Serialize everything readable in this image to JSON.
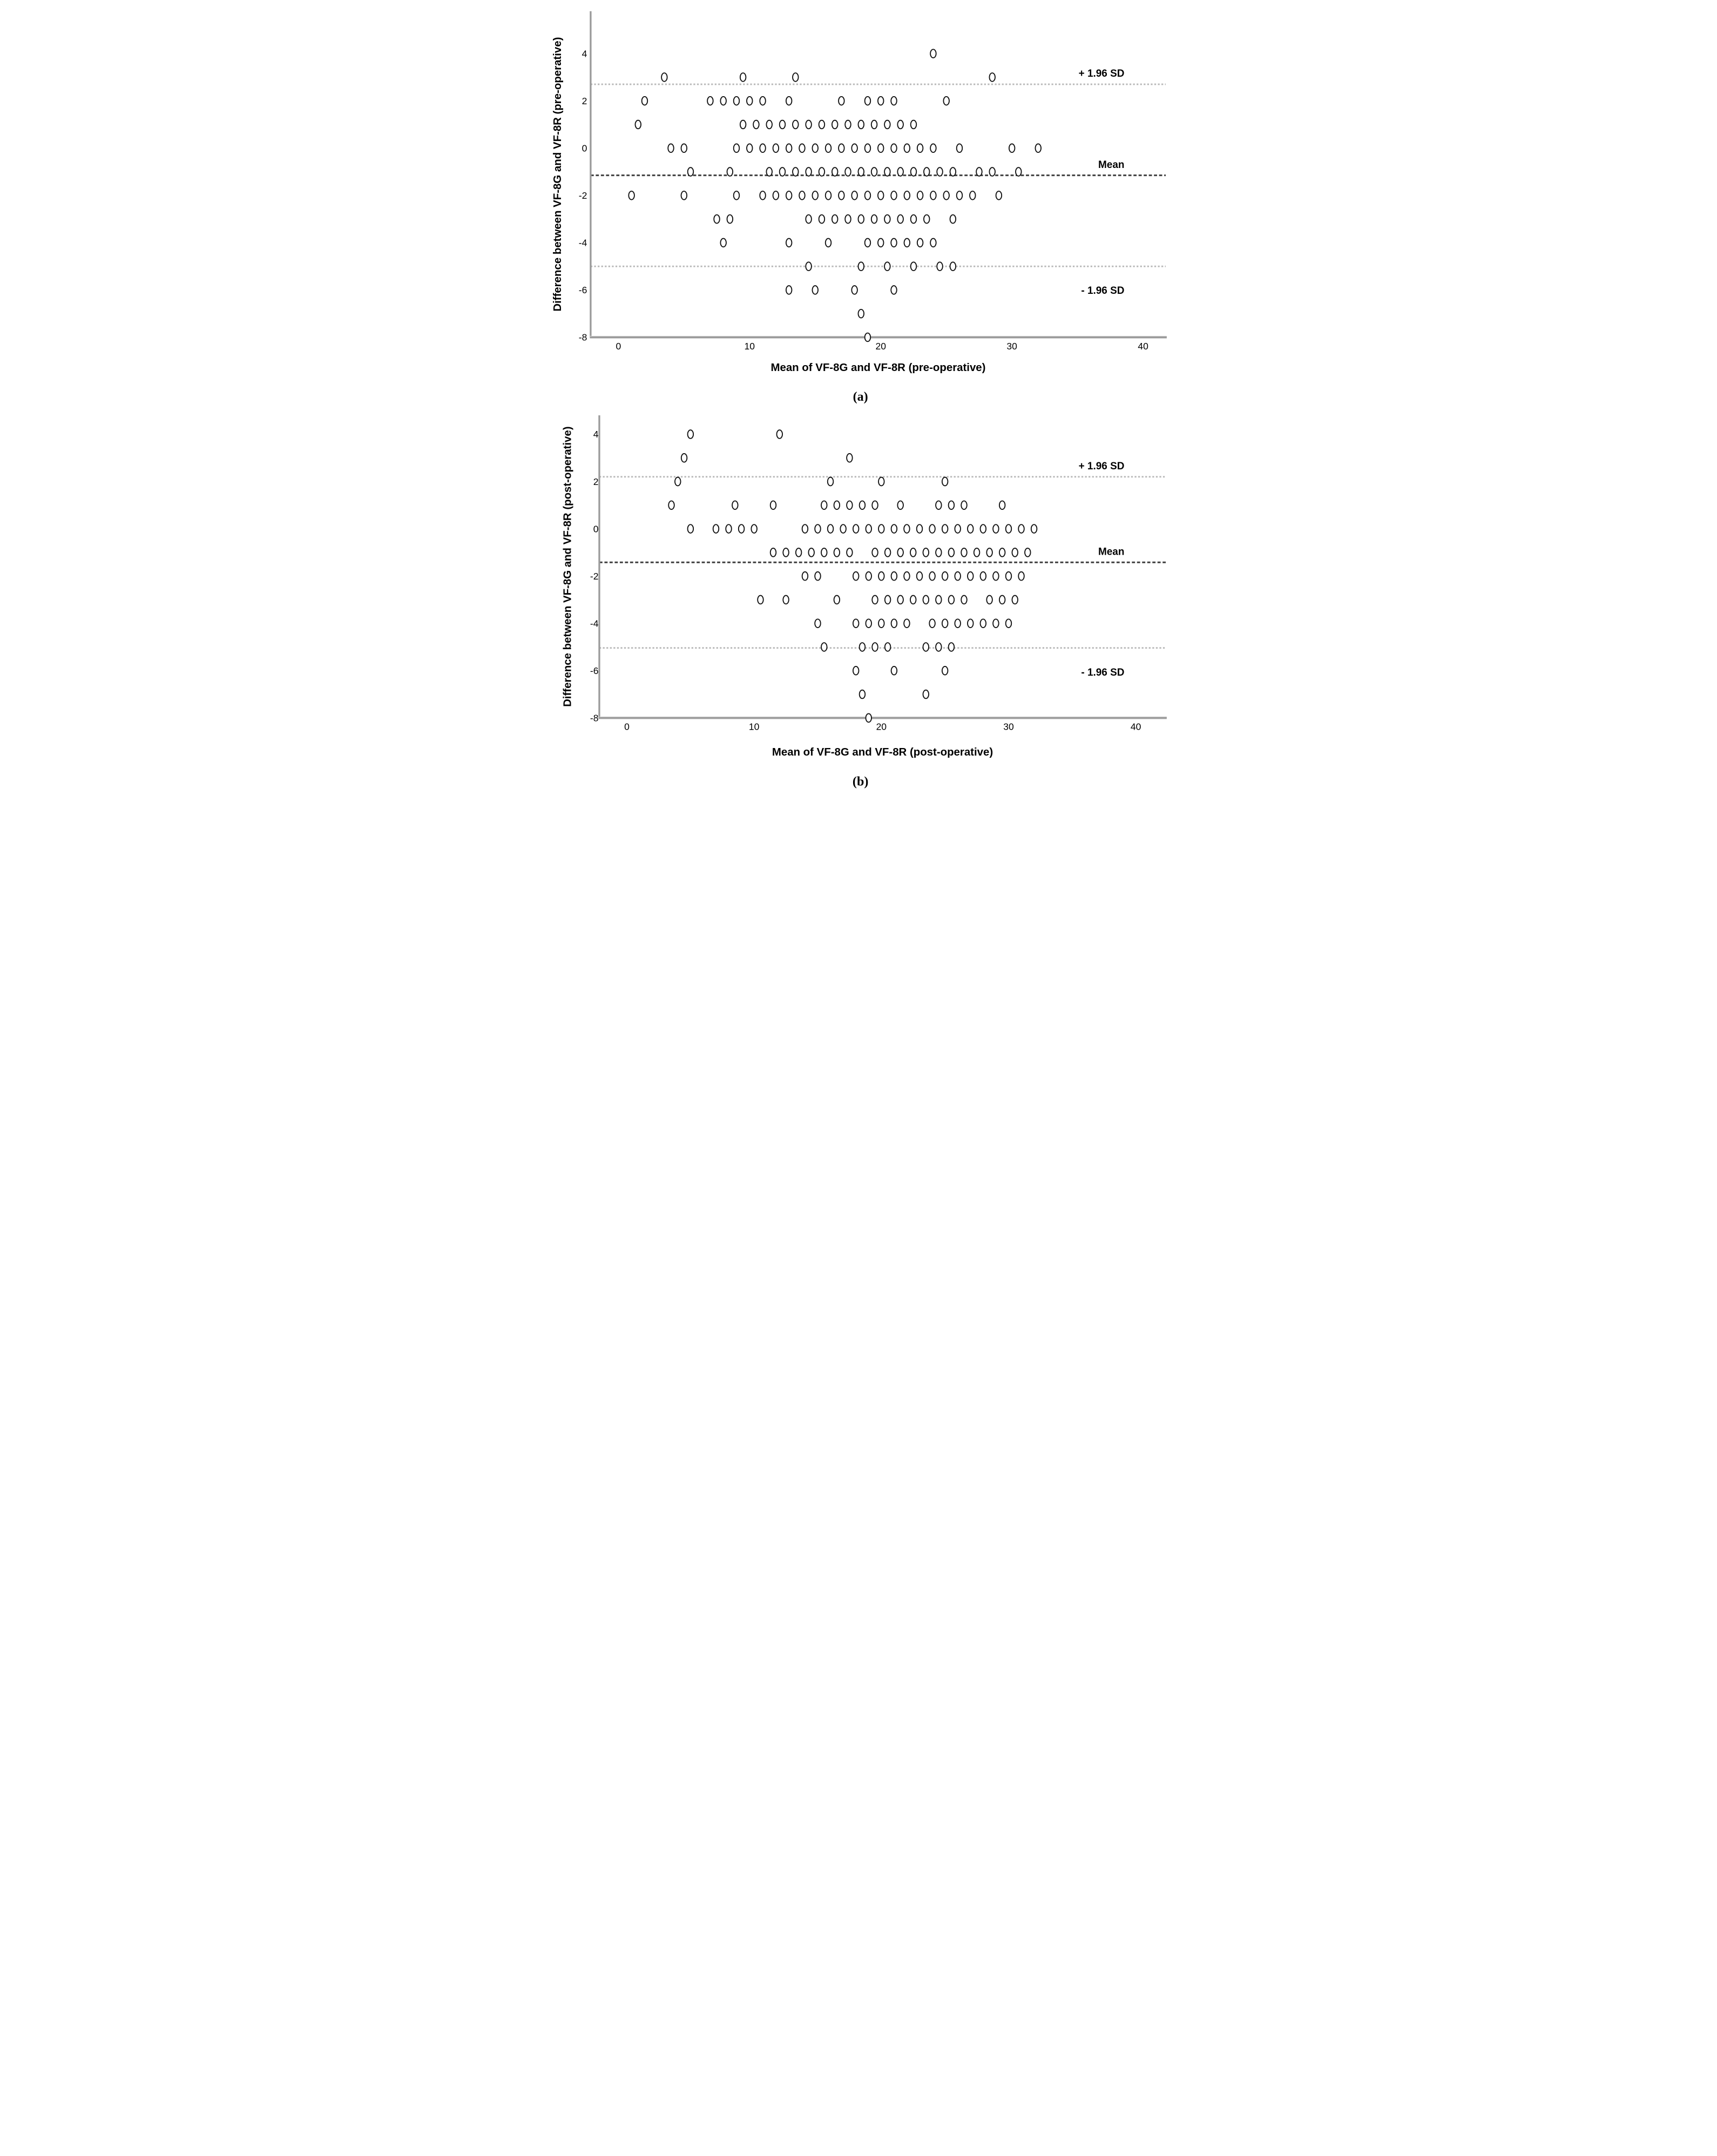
{
  "figure": {
    "caption_a": "(a)",
    "caption_b": "(b)"
  },
  "colors": {
    "loa_line": "#b9b9b9",
    "mean_line": "#404040",
    "axis": "#9a9a9a",
    "marker_stroke": "#111111",
    "text": "#000000",
    "background": "#ffffff"
  },
  "chart_data": [
    {
      "type": "scatter",
      "caption": "(a)",
      "title": "",
      "xlabel": "Mean of VF-8G and VF-8R (pre-operative)",
      "ylabel": "Difference between VF-8G and VF-8R (pre-operative)",
      "xlim": [
        -2.2,
        42.2
      ],
      "ylim": [
        -8,
        5.8
      ],
      "x_ticks": [
        "0",
        "10",
        "20",
        "30",
        "40"
      ],
      "x_tick_values": [
        0,
        10,
        20,
        30,
        40
      ],
      "y_ticks": [
        "4",
        "2",
        "0",
        "-2",
        "-4",
        "-6",
        "-8"
      ],
      "y_tick_values": [
        4,
        2,
        0,
        -2,
        -4,
        -6,
        -8
      ],
      "grid": false,
      "legend": "none",
      "marker": "open-circle",
      "reference_lines": [
        {
          "id": "upper",
          "label": "+ 1.96 SD",
          "value": 2.7,
          "style": "light-dashed"
        },
        {
          "id": "mean",
          "label": "Mean",
          "value": -1.15,
          "style": "dark-dashed"
        },
        {
          "id": "lower",
          "label": "- 1.96 SD",
          "value": -5.0,
          "style": "light-dashed"
        }
      ],
      "rows": [
        {
          "y": 4,
          "x": [
            24
          ]
        },
        {
          "y": 3,
          "x": [
            3.5,
            9.5,
            13.5,
            28.5
          ]
        },
        {
          "y": 2,
          "x": [
            2,
            7,
            8,
            9,
            10,
            11,
            13,
            17,
            19,
            20,
            21,
            25
          ]
        },
        {
          "y": 1,
          "x": [
            1.5,
            9.5,
            10.5,
            11.5,
            12.5,
            13.5,
            14.5,
            15.5,
            16.5,
            17.5,
            18.5,
            19.5,
            20.5,
            21.5,
            22.5
          ]
        },
        {
          "y": 0,
          "x": [
            4,
            5,
            9,
            10,
            11,
            12,
            13,
            14,
            15,
            16,
            17,
            18,
            19,
            20,
            21,
            22,
            23,
            24,
            26,
            30,
            32
          ]
        },
        {
          "y": -1,
          "x": [
            5.5,
            8.5,
            11.5,
            12.5,
            13.5,
            14.5,
            15.5,
            16.5,
            17.5,
            18.5,
            19.5,
            20.5,
            21.5,
            22.5,
            23.5,
            24.5,
            25.5,
            27.5,
            28.5,
            30.5
          ]
        },
        {
          "y": -2,
          "x": [
            1,
            5,
            9,
            11,
            12,
            13,
            14,
            15,
            16,
            17,
            18,
            19,
            20,
            21,
            22,
            23,
            24,
            25,
            26,
            27,
            29
          ]
        },
        {
          "y": -3,
          "x": [
            7.5,
            8.5,
            14.5,
            15.5,
            16.5,
            17.5,
            18.5,
            19.5,
            20.5,
            21.5,
            22.5,
            23.5,
            25.5
          ]
        },
        {
          "y": -4,
          "x": [
            8,
            13,
            16,
            19,
            20,
            21,
            22,
            23,
            24
          ]
        },
        {
          "y": -5,
          "x": [
            14.5,
            18.5,
            20.5,
            22.5,
            24.5,
            25.5
          ]
        },
        {
          "y": -6,
          "x": [
            13,
            15,
            18,
            21
          ]
        },
        {
          "y": -7,
          "x": [
            18.5
          ]
        },
        {
          "y": -8,
          "x": [
            19
          ]
        }
      ]
    },
    {
      "type": "scatter",
      "caption": "(b)",
      "title": "",
      "xlabel": "Mean of VF-8G and VF-8R (post-operative)",
      "ylabel": "Difference between VF-8G and VF-8R (post-operative)",
      "xlim": [
        -2.2,
        42.2
      ],
      "ylim": [
        -8,
        4.8
      ],
      "x_ticks": [
        "0",
        "10",
        "20",
        "30",
        "40"
      ],
      "x_tick_values": [
        0,
        10,
        20,
        30,
        40
      ],
      "y_ticks": [
        "4",
        "2",
        "0",
        "-2",
        "-4",
        "-6",
        "-8"
      ],
      "y_tick_values": [
        4,
        2,
        0,
        -2,
        -4,
        -6,
        -8
      ],
      "grid": false,
      "legend": "none",
      "marker": "open-circle",
      "reference_lines": [
        {
          "id": "upper",
          "label": "+ 1.96 SD",
          "value": 2.2,
          "style": "light-dashed"
        },
        {
          "id": "mean",
          "label": "Mean",
          "value": -1.42,
          "style": "dark-dashed"
        },
        {
          "id": "lower",
          "label": "- 1.96 SD",
          "value": -5.04,
          "style": "light-dashed"
        }
      ],
      "rows": [
        {
          "y": 4,
          "x": [
            5,
            12
          ]
        },
        {
          "y": 3,
          "x": [
            4.5,
            17.5
          ]
        },
        {
          "y": 2,
          "x": [
            4,
            16,
            20,
            25
          ]
        },
        {
          "y": 1,
          "x": [
            3.5,
            8.5,
            11.5,
            15.5,
            16.5,
            17.5,
            18.5,
            19.5,
            21.5,
            24.5,
            25.5,
            26.5,
            29.5
          ]
        },
        {
          "y": 0,
          "x": [
            5,
            7,
            8,
            9,
            10,
            14,
            15,
            16,
            17,
            18,
            19,
            20,
            21,
            22,
            23,
            24,
            25,
            26,
            27,
            28,
            29,
            30,
            31,
            32
          ]
        },
        {
          "y": -1,
          "x": [
            11.5,
            12.5,
            13.5,
            14.5,
            15.5,
            16.5,
            17.5,
            19.5,
            20.5,
            21.5,
            22.5,
            23.5,
            24.5,
            25.5,
            26.5,
            27.5,
            28.5,
            29.5,
            30.5,
            31.5
          ]
        },
        {
          "y": -2,
          "x": [
            14,
            15,
            18,
            19,
            20,
            21,
            22,
            23,
            24,
            25,
            26,
            27,
            28,
            29,
            30,
            31
          ]
        },
        {
          "y": -3,
          "x": [
            10.5,
            12.5,
            16.5,
            19.5,
            20.5,
            21.5,
            22.5,
            23.5,
            24.5,
            25.5,
            26.5,
            28.5,
            29.5,
            30.5
          ]
        },
        {
          "y": -4,
          "x": [
            15,
            18,
            19,
            20,
            21,
            22,
            24,
            25,
            26,
            27,
            28,
            29,
            30
          ]
        },
        {
          "y": -5,
          "x": [
            15.5,
            18.5,
            19.5,
            20.5,
            23.5,
            24.5,
            25.5
          ]
        },
        {
          "y": -6,
          "x": [
            18,
            21,
            25
          ]
        },
        {
          "y": -7,
          "x": [
            18.5,
            23.5
          ]
        },
        {
          "y": -8,
          "x": [
            19
          ]
        }
      ]
    }
  ]
}
